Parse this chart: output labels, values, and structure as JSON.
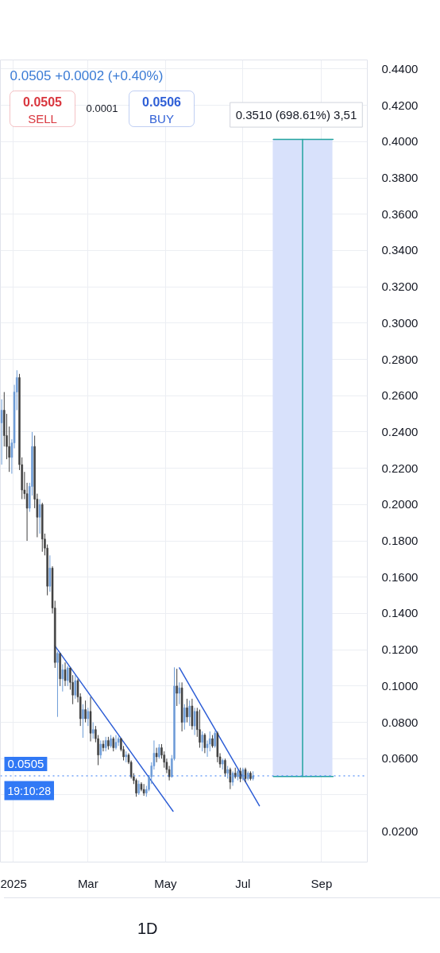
{
  "chart_data": {
    "type": "candlestick",
    "x": [
      "2024-12-23",
      "2024-12-25",
      "2024-12-27",
      "2024-12-29",
      "2024-12-31",
      "2025-01-02",
      "2025-01-04",
      "2025-01-06",
      "2025-01-08",
      "2025-01-10",
      "2025-01-12",
      "2025-01-14",
      "2025-01-16",
      "2025-01-18",
      "2025-01-20",
      "2025-01-22",
      "2025-01-24",
      "2025-01-26",
      "2025-01-28",
      "2025-01-30",
      "2025-02-01",
      "2025-02-03",
      "2025-02-05",
      "2025-02-07",
      "2025-02-09",
      "2025-02-11",
      "2025-02-13",
      "2025-02-15",
      "2025-02-17",
      "2025-02-19",
      "2025-02-21",
      "2025-02-23",
      "2025-02-25",
      "2025-02-27",
      "2025-03-01",
      "2025-03-03",
      "2025-03-05",
      "2025-03-07",
      "2025-03-09",
      "2025-03-11",
      "2025-03-13",
      "2025-03-15",
      "2025-03-17",
      "2025-03-19",
      "2025-03-21",
      "2025-03-23",
      "2025-03-25",
      "2025-03-27",
      "2025-03-29",
      "2025-03-31",
      "2025-04-02",
      "2025-04-04",
      "2025-04-06",
      "2025-04-08",
      "2025-04-10",
      "2025-04-12",
      "2025-04-14",
      "2025-04-16",
      "2025-04-18",
      "2025-04-20",
      "2025-04-22",
      "2025-04-24",
      "2025-04-26",
      "2025-04-28",
      "2025-04-30",
      "2025-05-02",
      "2025-05-04",
      "2025-05-06",
      "2025-05-08",
      "2025-05-10",
      "2025-05-12",
      "2025-05-14",
      "2025-05-16",
      "2025-05-18",
      "2025-05-20",
      "2025-05-22",
      "2025-05-24",
      "2025-05-26",
      "2025-05-28",
      "2025-05-30",
      "2025-06-01",
      "2025-06-03",
      "2025-06-05",
      "2025-06-07",
      "2025-06-09",
      "2025-06-11",
      "2025-06-13",
      "2025-06-15",
      "2025-06-17",
      "2025-06-19",
      "2025-06-21",
      "2025-06-23",
      "2025-06-25",
      "2025-06-27",
      "2025-06-29",
      "2025-07-01",
      "2025-07-03",
      "2025-07-05",
      "2025-07-07",
      "2025-07-09"
    ],
    "ohlc": [
      [
        0.245,
        0.258,
        0.222,
        0.252
      ],
      [
        0.252,
        0.262,
        0.232,
        0.238
      ],
      [
        0.238,
        0.25,
        0.225,
        0.232
      ],
      [
        0.232,
        0.243,
        0.218,
        0.226
      ],
      [
        0.226,
        0.236,
        0.217,
        0.234
      ],
      [
        0.234,
        0.266,
        0.231,
        0.262
      ],
      [
        0.262,
        0.274,
        0.252,
        0.27
      ],
      [
        0.27,
        0.272,
        0.219,
        0.222
      ],
      [
        0.222,
        0.226,
        0.203,
        0.208
      ],
      [
        0.208,
        0.218,
        0.203,
        0.206
      ],
      [
        0.206,
        0.212,
        0.18,
        0.198
      ],
      [
        0.198,
        0.212,
        0.196,
        0.21
      ],
      [
        0.21,
        0.24,
        0.205,
        0.232
      ],
      [
        0.232,
        0.238,
        0.198,
        0.203
      ],
      [
        0.203,
        0.206,
        0.182,
        0.193
      ],
      [
        0.193,
        0.203,
        0.184,
        0.2
      ],
      [
        0.2,
        0.201,
        0.174,
        0.181
      ],
      [
        0.181,
        0.184,
        0.172,
        0.176
      ],
      [
        0.176,
        0.178,
        0.15,
        0.155
      ],
      [
        0.155,
        0.172,
        0.152,
        0.165
      ],
      [
        0.165,
        0.166,
        0.14,
        0.143
      ],
      [
        0.143,
        0.147,
        0.11,
        0.113
      ],
      [
        0.113,
        0.119,
        0.083,
        0.118
      ],
      [
        0.118,
        0.118,
        0.1,
        0.104
      ],
      [
        0.104,
        0.112,
        0.097,
        0.109
      ],
      [
        0.109,
        0.113,
        0.1,
        0.103
      ],
      [
        0.103,
        0.111,
        0.1,
        0.11
      ],
      [
        0.11,
        0.11,
        0.098,
        0.102
      ],
      [
        0.102,
        0.106,
        0.09,
        0.095
      ],
      [
        0.095,
        0.106,
        0.093,
        0.103
      ],
      [
        0.103,
        0.104,
        0.091,
        0.094
      ],
      [
        0.094,
        0.096,
        0.078,
        0.082
      ],
      [
        0.082,
        0.09,
        0.0715,
        0.087
      ],
      [
        0.087,
        0.092,
        0.08,
        0.082
      ],
      [
        0.082,
        0.088,
        0.078,
        0.086
      ],
      [
        0.086,
        0.094,
        0.0695,
        0.074
      ],
      [
        0.074,
        0.08,
        0.071,
        0.076
      ],
      [
        0.076,
        0.078,
        0.069,
        0.071
      ],
      [
        0.071,
        0.073,
        0.0564,
        0.062
      ],
      [
        0.062,
        0.07,
        0.06,
        0.068
      ],
      [
        0.068,
        0.07,
        0.064,
        0.066
      ],
      [
        0.066,
        0.072,
        0.064,
        0.07
      ],
      [
        0.07,
        0.072,
        0.065,
        0.067
      ],
      [
        0.067,
        0.073,
        0.066,
        0.071
      ],
      [
        0.071,
        0.072,
        0.064,
        0.066
      ],
      [
        0.066,
        0.073,
        0.065,
        0.069
      ],
      [
        0.069,
        0.0722,
        0.067,
        0.071
      ],
      [
        0.071,
        0.0715,
        0.064,
        0.065
      ],
      [
        0.065,
        0.067,
        0.059,
        0.061
      ],
      [
        0.061,
        0.064,
        0.058,
        0.062
      ],
      [
        0.062,
        0.063,
        0.057,
        0.058
      ],
      [
        0.058,
        0.059,
        0.049,
        0.05
      ],
      [
        0.05,
        0.052,
        0.046,
        0.048
      ],
      [
        0.048,
        0.049,
        0.039,
        0.041
      ],
      [
        0.041,
        0.048,
        0.04,
        0.046
      ],
      [
        0.046,
        0.047,
        0.042,
        0.043
      ],
      [
        0.043,
        0.046,
        0.0395,
        0.041
      ],
      [
        0.041,
        0.045,
        0.039,
        0.043
      ],
      [
        0.043,
        0.051,
        0.042,
        0.05
      ],
      [
        0.05,
        0.058,
        0.046,
        0.056
      ],
      [
        0.056,
        0.07,
        0.054,
        0.063
      ],
      [
        0.063,
        0.066,
        0.058,
        0.061
      ],
      [
        0.061,
        0.068,
        0.06,
        0.066
      ],
      [
        0.066,
        0.068,
        0.06,
        0.062
      ],
      [
        0.062,
        0.064,
        0.055,
        0.058
      ],
      [
        0.058,
        0.06,
        0.052,
        0.054
      ],
      [
        0.054,
        0.056,
        0.048,
        0.05
      ],
      [
        0.05,
        0.062,
        0.0495,
        0.06
      ],
      [
        0.06,
        0.1103,
        0.059,
        0.1
      ],
      [
        0.1,
        0.1095,
        0.089,
        0.096
      ],
      [
        0.096,
        0.102,
        0.09,
        0.099
      ],
      [
        0.099,
        0.102,
        0.075,
        0.08
      ],
      [
        0.08,
        0.09,
        0.076,
        0.088
      ],
      [
        0.088,
        0.093,
        0.08,
        0.083
      ],
      [
        0.083,
        0.092,
        0.078,
        0.089
      ],
      [
        0.089,
        0.093,
        0.076,
        0.078
      ],
      [
        0.078,
        0.088,
        0.073,
        0.086
      ],
      [
        0.086,
        0.088,
        0.072,
        0.076
      ],
      [
        0.076,
        0.087,
        0.066,
        0.069
      ],
      [
        0.069,
        0.075,
        0.064,
        0.073
      ],
      [
        0.073,
        0.074,
        0.063,
        0.066
      ],
      [
        0.066,
        0.07,
        0.061,
        0.068
      ],
      [
        0.068,
        0.075,
        0.064,
        0.071
      ],
      [
        0.071,
        0.073,
        0.066,
        0.067
      ],
      [
        0.067,
        0.0752,
        0.066,
        0.074
      ],
      [
        0.074,
        0.075,
        0.058,
        0.061
      ],
      [
        0.061,
        0.063,
        0.055,
        0.057
      ],
      [
        0.057,
        0.06,
        0.054,
        0.059
      ],
      [
        0.059,
        0.06,
        0.05,
        0.052
      ],
      [
        0.052,
        0.056,
        0.049,
        0.054
      ],
      [
        0.054,
        0.055,
        0.0432,
        0.047
      ],
      [
        0.047,
        0.053,
        0.045,
        0.052
      ],
      [
        0.052,
        0.055,
        0.049,
        0.05
      ],
      [
        0.05,
        0.054,
        0.048,
        0.053
      ],
      [
        0.053,
        0.055,
        0.047,
        0.049
      ],
      [
        0.049,
        0.055,
        0.048,
        0.054
      ],
      [
        0.054,
        0.055,
        0.047,
        0.049
      ],
      [
        0.049,
        0.053,
        0.048,
        0.052
      ],
      [
        0.052,
        0.053,
        0.048,
        0.049
      ],
      [
        0.049,
        0.053,
        0.048,
        0.0505
      ]
    ],
    "colors": [
      "#6b9bd6",
      "#3f3f3f",
      "#3f3f3f",
      "#3f3f3f",
      "#6b9bd6",
      "#6b9bd6",
      "#6b9bd6",
      "#3f3f3f",
      "#3f3f3f",
      "#3f3f3f",
      "#3f3f3f",
      "#6b9bd6",
      "#6b9bd6",
      "#3f3f3f",
      "#3f3f3f",
      "#6b9bd6",
      "#3f3f3f",
      "#3f3f3f",
      "#3f3f3f",
      "#6b9bd6",
      "#3f3f3f",
      "#3f3f3f",
      "#6b9bd6",
      "#3f3f3f",
      "#6b9bd6",
      "#3f3f3f",
      "#6b9bd6",
      "#3f3f3f",
      "#3f3f3f",
      "#6b9bd6",
      "#3f3f3f",
      "#3f3f3f",
      "#6b9bd6",
      "#3f3f3f",
      "#6b9bd6",
      "#3f3f3f",
      "#6b9bd6",
      "#3f3f3f",
      "#3f3f3f",
      "#6b9bd6",
      "#3f3f3f",
      "#6b9bd6",
      "#3f3f3f",
      "#6b9bd6",
      "#3f3f3f",
      "#6b9bd6",
      "#6b9bd6",
      "#3f3f3f",
      "#3f3f3f",
      "#6b9bd6",
      "#3f3f3f",
      "#3f3f3f",
      "#3f3f3f",
      "#3f3f3f",
      "#6b9bd6",
      "#3f3f3f",
      "#3f3f3f",
      "#6b9bd6",
      "#6b9bd6",
      "#6b9bd6",
      "#6b9bd6",
      "#3f3f3f",
      "#6b9bd6",
      "#3f3f3f",
      "#3f3f3f",
      "#3f3f3f",
      "#3f3f3f",
      "#6b9bd6",
      "#6b9bd6",
      "#3f3f3f",
      "#6b9bd6",
      "#3f3f3f",
      "#6b9bd6",
      "#3f3f3f",
      "#6b9bd6",
      "#3f3f3f",
      "#6b9bd6",
      "#3f3f3f",
      "#3f3f3f",
      "#6b9bd6",
      "#3f3f3f",
      "#6b9bd6",
      "#6b9bd6",
      "#3f3f3f",
      "#6b9bd6",
      "#3f3f3f",
      "#3f3f3f",
      "#6b9bd6",
      "#3f3f3f",
      "#6b9bd6",
      "#3f3f3f",
      "#6b9bd6",
      "#3f3f3f",
      "#6b9bd6",
      "#3f3f3f",
      "#6b9bd6",
      "#3f3f3f",
      "#6b9bd6",
      "#3f3f3f",
      "#6b9bd6"
    ],
    "series": [
      {
        "type": "bar",
        "x": [
          "2025-08-17"
        ],
        "base": [
          0.0502
        ],
        "values": [
          0.351
        ],
        "color": "#d8e1fb"
      },
      {
        "type": "line",
        "x": [
          "2025-07-25",
          "2025-09-10"
        ],
        "values": [
          0.4012,
          0.4012
        ],
        "color": "#22a39f"
      },
      {
        "type": "line",
        "x": [
          "2025-08-17",
          "2025-08-17"
        ],
        "values": [
          0.0502,
          0.4012
        ],
        "color": "#22a39f"
      },
      {
        "type": "line",
        "x": [
          "2025-07-25",
          "2025-09-10"
        ],
        "values": [
          0.0502,
          0.0502
        ],
        "color": "#22a39f"
      },
      {
        "type": "line",
        "x": [
          "2025-02-03",
          "2025-05-07"
        ],
        "values": [
          0.1221,
          0.031
        ],
        "color": "#2f5fd6"
      },
      {
        "type": "line",
        "x": [
          "2025-05-12",
          "2025-07-14"
        ],
        "values": [
          0.11,
          0.034
        ],
        "color": "#2f5fd6"
      }
    ],
    "ref_lines": [
      {
        "axis": "y",
        "value": 0.0505,
        "label": "0.0505",
        "color": "#3179f5",
        "line_style": "dotted"
      }
    ],
    "xlim": [
      "2024-12-22",
      "2025-10-07"
    ],
    "xticks": [
      {
        "value": "2025-01-01",
        "label": "2025"
      },
      {
        "value": "2025-03-01",
        "label": "Mar"
      },
      {
        "value": "2025-05-01",
        "label": "May"
      },
      {
        "value": "2025-07-01",
        "label": "Jul"
      },
      {
        "value": "2025-09-01",
        "label": "Sep"
      }
    ],
    "ylim": [
      0.003,
      0.445
    ],
    "yticks": [
      {
        "value": 0.02,
        "label": "0.0200"
      },
      {
        "value": 0.04,
        "label": null
      },
      {
        "value": 0.06,
        "label": "0.0600"
      },
      {
        "value": 0.08,
        "label": "0.0800"
      },
      {
        "value": 0.1,
        "label": "0.1000"
      },
      {
        "value": 0.12,
        "label": "0.1200"
      },
      {
        "value": 0.14,
        "label": "0.1400"
      },
      {
        "value": 0.16,
        "label": "0.1600"
      },
      {
        "value": 0.18,
        "label": "0.1800"
      },
      {
        "value": 0.2,
        "label": "0.2000"
      },
      {
        "value": 0.22,
        "label": "0.2200"
      },
      {
        "value": 0.24,
        "label": "0.2400"
      },
      {
        "value": 0.26,
        "label": "0.2600"
      },
      {
        "value": 0.28,
        "label": "0.2800"
      },
      {
        "value": 0.3,
        "label": "0.3000"
      },
      {
        "value": 0.32,
        "label": "0.3200"
      },
      {
        "value": 0.34,
        "label": "0.3400"
      },
      {
        "value": 0.36,
        "label": "0.3600"
      },
      {
        "value": 0.38,
        "label": "0.3800"
      },
      {
        "value": 0.4,
        "label": "0.4000"
      },
      {
        "value": 0.42,
        "label": "0.4200"
      },
      {
        "value": 0.44,
        "label": "0.4400"
      }
    ],
    "grid": true,
    "annotations": [
      "0.0505 +0.0002 (+0.40%)",
      "0.0505",
      "SELL",
      "0.0001",
      "0.0506",
      "BUY",
      {
        "text": "0.3510 (698.61%) 3,51",
        "x": "2025-08-17",
        "y": 0.4012
      },
      "19:10:28",
      "1D"
    ]
  }
}
